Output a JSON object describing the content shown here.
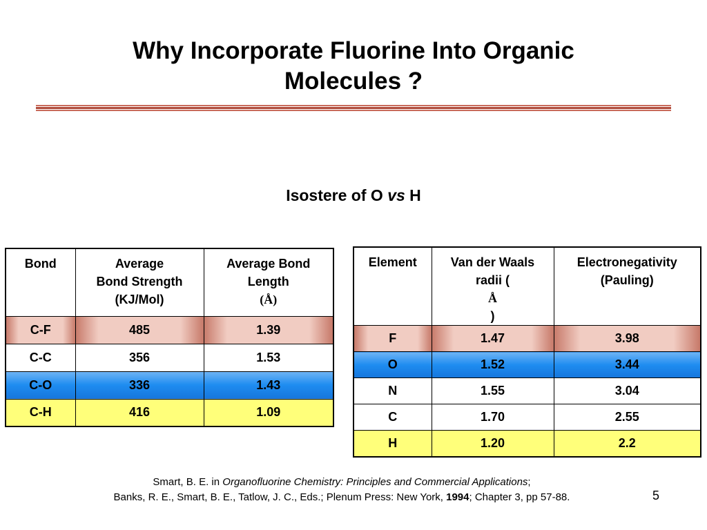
{
  "slide": {
    "title_line1": "Why Incorporate Fluorine Into Organic",
    "title_line2": "Molecules ?",
    "subtitle_pre": "Isostere of O ",
    "subtitle_vs": "vs",
    "subtitle_post": " H",
    "page_number": "5"
  },
  "bond_table": {
    "headers": {
      "col1": "Bond",
      "col2_line1": "Average",
      "col2_line2": "Bond Strength",
      "col2_line3": "(KJ/Mol)",
      "col3_line1": "Average Bond",
      "col3_line2": "Length",
      "col3_line3": "(Å)"
    },
    "rows": [
      {
        "bond": "C-F",
        "strength": "485",
        "length": "1.39",
        "color": "#f1ccc2"
      },
      {
        "bond": "C-C",
        "strength": "356",
        "length": "1.53",
        "color": "#ffffff"
      },
      {
        "bond": "C-O",
        "strength": "336",
        "length": "1.43",
        "color": "#1e8cf0"
      },
      {
        "bond": "C-H",
        "strength": "416",
        "length": "1.09",
        "color": "#ffff7a"
      }
    ]
  },
  "element_table": {
    "headers": {
      "col1": "Element",
      "col2_line1": "Van der Waals",
      "col2_line2": "radii (",
      "col2_angstrom": "Å",
      "col2_close": ")",
      "col3_line1": "Electronegativity",
      "col3_line2": "(Pauling)"
    },
    "rows": [
      {
        "element": "F",
        "radius": "1.47",
        "en": "3.98",
        "color": "#f1ccc2"
      },
      {
        "element": "O",
        "radius": "1.52",
        "en": "3.44",
        "color": "#1e8cf0"
      },
      {
        "element": "N",
        "radius": "1.55",
        "en": "3.04",
        "color": "#ffffff"
      },
      {
        "element": "C",
        "radius": "1.70",
        "en": "2.55",
        "color": "#ffffff"
      },
      {
        "element": "H",
        "radius": "1.20",
        "en": "2.2",
        "color": "#ffff7a"
      }
    ]
  },
  "citation": {
    "line1_pre": "Smart, B. E. in ",
    "line1_italic": "Organofluorine Chemistry: Principles and Commercial Applications",
    "line1_post": ";",
    "line2_pre": "Banks, R. E., Smart, B. E., Tatlow, J. C., Eds.; Plenum Press: New York, ",
    "line2_year": "1994",
    "line2_post": "; Chapter 3, pp 57-88."
  }
}
